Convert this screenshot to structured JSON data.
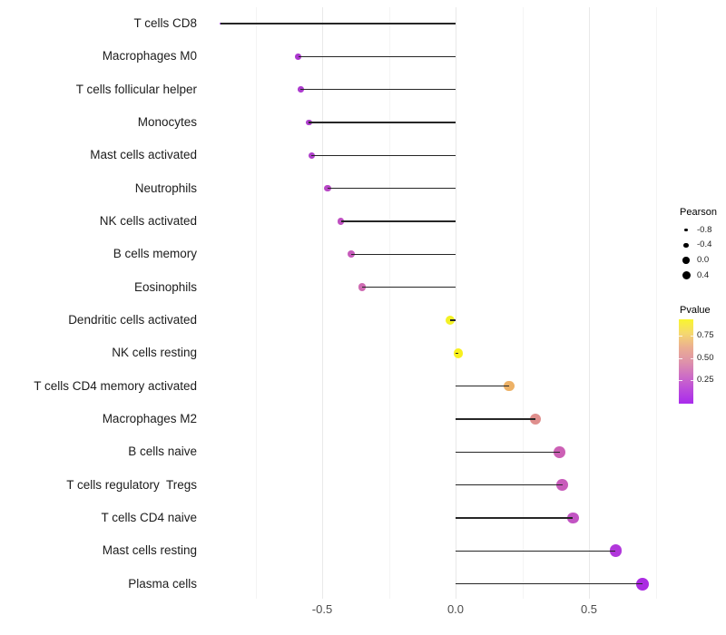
{
  "chart_data": {
    "type": "scatter",
    "variant": "lollipop",
    "title": "",
    "xlabel": "",
    "ylabel": "",
    "categories": [
      "T cells CD8",
      "Macrophages M0",
      "T cells follicular helper",
      "Monocytes",
      "Mast cells activated",
      "Neutrophils",
      "NK cells activated",
      "B cells memory",
      "Eosinophils",
      "Dendritic cells activated",
      "NK cells resting",
      "T cells CD4 memory activated",
      "Macrophages M2",
      "B cells naive",
      "T cells regulatory  Tregs",
      "T cells CD4 naive",
      "Mast cells resting",
      "Plasma cells"
    ],
    "series": [
      {
        "name": "Pearson correlation",
        "values": [
          -0.88,
          -0.59,
          -0.58,
          -0.55,
          -0.54,
          -0.48,
          -0.43,
          -0.39,
          -0.35,
          -0.02,
          0.01,
          0.2,
          0.3,
          0.39,
          0.4,
          0.44,
          0.6,
          0.7
        ]
      }
    ],
    "point_colors": [
      "#9330E0",
      "#AC38CF",
      "#AC3BCE",
      "#AE3ECC",
      "#AF40CB",
      "#B847C6",
      "#BF50C1",
      "#C75BBB",
      "#CF6BB2",
      "#F3F126",
      "#F8F01E",
      "#EDB166",
      "#DF8F8D",
      "#CC60B5",
      "#C95CBB",
      "#C254C3",
      "#B137DB",
      "#AB2BE2"
    ],
    "pvalue_approx": [
      0.001,
      0.07,
      0.08,
      0.09,
      0.1,
      0.14,
      0.18,
      0.23,
      0.28,
      0.85,
      0.9,
      0.58,
      0.42,
      0.26,
      0.25,
      0.2,
      0.1,
      0.06
    ],
    "x_axis": {
      "tick_labels": [
        "-0.5",
        "0.0",
        "0.5"
      ],
      "tick_values": [
        -0.5,
        0.0,
        0.5
      ],
      "minor_tick_values": [
        -0.75,
        -0.25,
        0.25,
        0.75
      ],
      "range": [
        -0.96,
        0.8
      ]
    },
    "grid": "vertical-only",
    "legend_position": "right"
  },
  "legend": {
    "pearson": {
      "title": "Pearson",
      "items": [
        {
          "label": "-0.8",
          "value": -0.8
        },
        {
          "label": "-0.4",
          "value": -0.4
        },
        {
          "label": "0.0",
          "value": 0.0
        },
        {
          "label": "0.4",
          "value": 0.4
        }
      ]
    },
    "pvalue": {
      "title": "Pvalue",
      "tick_labels": [
        "0.75",
        "0.50",
        "0.25"
      ],
      "bar_range": [
        0,
        0.93
      ],
      "gradient_bottom": "#A92BEC",
      "gradient_top": "#F9F62E",
      "gradient_stops": [
        "#A92BEC",
        "#BB4BDB",
        "#CE6FC4",
        "#DE93A9",
        "#EBAE91",
        "#F5D86F",
        "#F9F62E"
      ]
    }
  },
  "colors": {
    "segment": "#262626",
    "grid_major": "#E9E9E9",
    "grid_minor": "#F4F4F4",
    "axis_text": "#4D4D4D",
    "label_text": "#1C1C1C",
    "background": "#FFFFFF"
  }
}
